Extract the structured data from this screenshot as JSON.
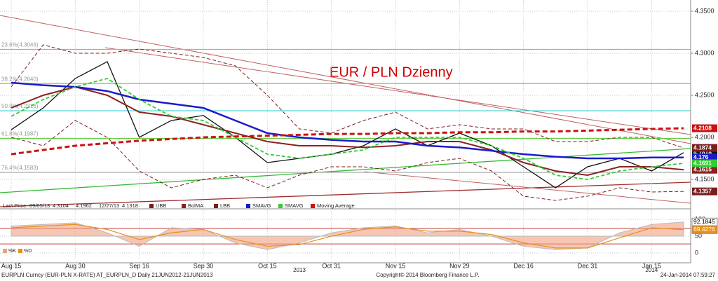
{
  "chart_data": {
    "type": "line",
    "annotation": "EUR / PLN Dzienny",
    "categories": [
      "Aug 15",
      null,
      "Aug 30",
      null,
      "Sep 16",
      null,
      "Sep 30",
      null,
      "Oct 15",
      null,
      "Oct 31",
      null,
      "Nov 15",
      null,
      "Nov 29",
      null,
      "Dec 16",
      null,
      "Dec 31",
      null,
      "Jan 15",
      null
    ],
    "year_labels": [
      {
        "label": "2013",
        "index": 9
      },
      {
        "label": "2014",
        "index": 20
      }
    ],
    "ylim": [
      4.1225,
      4.3633
    ],
    "yticks": [
      {
        "value": 4.15,
        "label": "4.1500"
      },
      {
        "value": 4.2,
        "label": "4.2000"
      },
      {
        "value": 4.25,
        "label": "4.2500"
      },
      {
        "value": 4.3,
        "label": "4.3000"
      },
      {
        "value": 4.35,
        "label": "4.3500"
      }
    ],
    "grid": true,
    "fib_levels": [
      {
        "label": "23.6%(4.3046)",
        "value": 4.3046,
        "color": "#aaaaaa"
      },
      {
        "label": "38.2%(4.2640)",
        "value": 4.264,
        "color": "#66cc44"
      },
      {
        "label": "50.0%(4.2316)",
        "value": 4.2316,
        "color": "#33cccc"
      },
      {
        "label": "61.8%(4.1987)",
        "value": 4.1987,
        "color": "#66cc44"
      },
      {
        "label": "76.4%(4.1583)",
        "value": 4.1583,
        "color": "#aaaaaa"
      }
    ],
    "legend": {
      "stats": [
        "Last Price",
        "09/05/13",
        "4.3104",
        "4.1962",
        "12/27/13",
        "4.1318"
      ]
    },
    "series": [
      {
        "name": "Last Price",
        "color": "#111111",
        "width": 1.3,
        "dash": "none",
        "values": [
          4.209,
          4.235,
          4.27,
          4.29,
          4.2,
          4.22,
          4.226,
          4.2,
          4.17,
          4.175,
          4.18,
          4.19,
          4.21,
          4.19,
          4.205,
          4.19,
          4.165,
          4.14,
          4.165,
          4.175,
          4.16,
          4.1818
        ]
      },
      {
        "name": "UBB",
        "color": "#7a1f1f",
        "width": 1,
        "dash": "5 3",
        "values": [
          4.26,
          4.31,
          4.3,
          4.3,
          4.305,
          4.3,
          4.295,
          4.285,
          4.25,
          4.21,
          4.205,
          4.22,
          4.23,
          4.21,
          4.215,
          4.21,
          4.21,
          4.195,
          4.195,
          4.2,
          4.2,
          4.1874
        ]
      },
      {
        "name": "BolMA",
        "color": "#8b2222",
        "width": 2,
        "dash": "none",
        "values": [
          4.235,
          4.25,
          4.26,
          4.25,
          4.23,
          4.225,
          4.215,
          4.205,
          4.195,
          4.19,
          4.19,
          4.188,
          4.19,
          4.195,
          4.195,
          4.185,
          4.17,
          4.16,
          4.155,
          4.165,
          4.165,
          4.1615
        ]
      },
      {
        "name": "LBB",
        "color": "#7a1f1f",
        "width": 1,
        "dash": "5 3",
        "values": [
          4.2,
          4.19,
          4.22,
          4.2,
          4.16,
          4.14,
          4.15,
          4.155,
          4.14,
          4.155,
          4.165,
          4.165,
          4.16,
          4.17,
          4.175,
          4.16,
          4.13,
          4.125,
          4.13,
          4.14,
          4.135,
          4.1357
        ]
      },
      {
        "name": "SMAVG",
        "color": "#1a1acc",
        "width": 2.5,
        "dash": "none",
        "values": [
          4.265,
          4.262,
          4.26,
          4.255,
          4.245,
          4.24,
          4.235,
          4.22,
          4.205,
          4.2,
          4.197,
          4.195,
          4.195,
          4.19,
          4.188,
          4.184,
          4.18,
          4.177,
          4.175,
          4.175,
          4.176,
          4.176
        ]
      },
      {
        "name": "SMAVG",
        "color": "#33cc33",
        "width": 1.8,
        "dash": "5 3",
        "values": [
          4.225,
          4.245,
          4.26,
          4.27,
          4.245,
          4.225,
          4.22,
          4.2,
          4.18,
          4.175,
          4.18,
          4.185,
          4.2,
          4.2,
          4.2,
          4.19,
          4.175,
          4.155,
          4.15,
          4.16,
          4.165,
          4.1691
        ]
      },
      {
        "name": "Moving Average",
        "color": "#cc1111",
        "width": 3,
        "dash": "7 4",
        "values": [
          4.18,
          4.185,
          4.19,
          4.193,
          4.196,
          4.198,
          4.2,
          4.201,
          4.202,
          4.203,
          4.204,
          4.204,
          4.205,
          4.205,
          4.206,
          4.206,
          4.207,
          4.207,
          4.208,
          4.209,
          4.21,
          4.2108
        ]
      }
    ],
    "oscillator": {
      "ylim": [
        -27,
        123
      ],
      "yticks": [
        0,
        50,
        100
      ],
      "levels": [
        73,
        27
      ],
      "series": [
        {
          "name": "%K",
          "color": "#f0a080",
          "values": [
            80,
            85,
            90,
            60,
            20,
            75,
            70,
            30,
            10,
            30,
            60,
            75,
            80,
            60,
            70,
            50,
            20,
            10,
            15,
            60,
            85,
            92.1845
          ]
        },
        {
          "name": "%D",
          "color": "#e8901a",
          "values": [
            75,
            80,
            85,
            70,
            40,
            60,
            70,
            40,
            20,
            25,
            50,
            70,
            78,
            65,
            65,
            55,
            30,
            15,
            15,
            45,
            75,
            69.4276
          ]
        }
      ]
    },
    "footer": {
      "left": "EURPLN Curncy (EUR-PLN X-RATE) AT_EURPLN_D  Daily 21JUN2012-21JUN2013",
      "center": "Copyright© 2014 Bloomberg Finance L.P.",
      "right": "24-Jan-2014 07:59:27"
    }
  }
}
